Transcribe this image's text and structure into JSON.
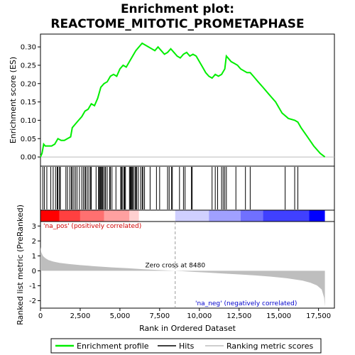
{
  "chart_data": {
    "type": "line",
    "title": [
      "Enrichment plot:",
      "REACTOME_MITOTIC_PROMETAPHASE"
    ],
    "colors": {
      "enrichment": "#00ee00",
      "hits": "#000000",
      "metric": "#bebebe",
      "pos_annot": "#d00000",
      "neg_annot": "#0000cc",
      "zero_line": "#999999"
    },
    "top_panel": {
      "ylabel": "Enrichment score (ES)",
      "ylim": [
        -0.025,
        0.335
      ],
      "yticks": [
        0.0,
        0.05,
        0.1,
        0.15,
        0.2,
        0.25,
        0.3
      ],
      "ytick_labels": [
        "0.00",
        "0.05",
        "0.10",
        "0.15",
        "0.20",
        "0.25",
        "0.30"
      ],
      "series": {
        "name": "Enrichment profile",
        "x": [
          0,
          100,
          200,
          300,
          500,
          700,
          900,
          1100,
          1300,
          1500,
          1700,
          1900,
          2000,
          2200,
          2400,
          2600,
          2800,
          3000,
          3200,
          3400,
          3600,
          3800,
          4000,
          4200,
          4400,
          4600,
          4800,
          5000,
          5200,
          5400,
          5600,
          5800,
          6000,
          6200,
          6400,
          6600,
          6800,
          7000,
          7200,
          7400,
          7600,
          7800,
          8000,
          8200,
          8400,
          8600,
          8800,
          9000,
          9200,
          9400,
          9600,
          9800,
          10000,
          10200,
          10400,
          10600,
          10800,
          11000,
          11200,
          11400,
          11600,
          11700,
          11800,
          12000,
          12200,
          12400,
          12600,
          12800,
          13000,
          13200,
          13400,
          13600,
          13800,
          14000,
          14400,
          14800,
          15200,
          15600,
          16000,
          16200,
          16400,
          16800,
          17200,
          17600,
          17900
        ],
        "y": [
          0.0,
          0.01,
          0.035,
          0.03,
          0.03,
          0.03,
          0.035,
          0.05,
          0.045,
          0.045,
          0.05,
          0.055,
          0.08,
          0.09,
          0.1,
          0.11,
          0.125,
          0.13,
          0.145,
          0.14,
          0.16,
          0.19,
          0.2,
          0.205,
          0.22,
          0.225,
          0.22,
          0.24,
          0.25,
          0.245,
          0.26,
          0.275,
          0.29,
          0.3,
          0.31,
          0.305,
          0.3,
          0.295,
          0.29,
          0.3,
          0.29,
          0.28,
          0.285,
          0.295,
          0.285,
          0.275,
          0.27,
          0.28,
          0.285,
          0.275,
          0.28,
          0.275,
          0.26,
          0.245,
          0.23,
          0.22,
          0.215,
          0.225,
          0.22,
          0.225,
          0.24,
          0.275,
          0.27,
          0.26,
          0.255,
          0.25,
          0.24,
          0.235,
          0.23,
          0.23,
          0.22,
          0.21,
          0.2,
          0.19,
          0.17,
          0.15,
          0.12,
          0.105,
          0.1,
          0.095,
          0.08,
          0.055,
          0.03,
          0.01,
          0.0
        ]
      }
    },
    "hits_panel": {
      "label": "Hits",
      "positions": [
        150,
        250,
        400,
        650,
        800,
        950,
        1050,
        1100,
        1200,
        1250,
        1600,
        1700,
        1850,
        1950,
        2000,
        2100,
        2200,
        2300,
        2450,
        2600,
        2700,
        2800,
        2850,
        2950,
        3050,
        3150,
        3200,
        3500,
        3650,
        3700,
        3750,
        3800,
        3850,
        3900,
        3950,
        4050,
        4100,
        4200,
        4350,
        4400,
        4500,
        4750,
        5050,
        5100,
        5150,
        5250,
        5300,
        5350,
        5600,
        5650,
        5700,
        5750,
        5800,
        5850,
        5950,
        6000,
        6050,
        6150,
        6300,
        6400,
        6450,
        6550,
        6900,
        7300,
        7500,
        8000,
        8100,
        8250,
        8300,
        8750,
        9000,
        9100,
        9500,
        9550,
        10800,
        11000,
        11150,
        11400,
        11500,
        11600,
        11700,
        12300,
        12900,
        13200,
        15400,
        16000,
        16200
      ]
    },
    "ranking_bar": {
      "colors_left_to_right": [
        "#ff0000",
        "#ff4040",
        "#ff7070",
        "#ffa0a0",
        "#ffd0d0",
        "#ffffff",
        "#d0d0ff",
        "#a0a0ff",
        "#7070ff",
        "#4040ff",
        "#0000ff"
      ],
      "edges": [
        0,
        1200,
        2500,
        4000,
        5600,
        6200,
        8480,
        10600,
        12600,
        14000,
        16900,
        17900
      ]
    },
    "bottom_panel": {
      "ylabel": "Ranked list metric (PreRanked)",
      "xlabel": "Rank in Ordered Dataset",
      "ylim": [
        -2.5,
        3.3
      ],
      "yticks": [
        -2,
        -1,
        0,
        1,
        2,
        3
      ],
      "ytick_labels": [
        "-2",
        "-1",
        "0",
        "1",
        "2",
        "3"
      ],
      "xlim": [
        0,
        18500
      ],
      "xticks": [
        0,
        2500,
        5000,
        7500,
        10000,
        12500,
        15000,
        17500
      ],
      "xtick_labels": [
        "0",
        "2,500",
        "5,000",
        "7,500",
        "10,000",
        "12,500",
        "15,000",
        "17,500"
      ],
      "series": {
        "name": "Ranking metric scores",
        "x": [
          0,
          50,
          150,
          300,
          500,
          800,
          1200,
          1800,
          2500,
          3500,
          4500,
          5500,
          6500,
          7500,
          8480,
          9500,
          10500,
          11500,
          12500,
          13500,
          14500,
          15500,
          16500,
          17000,
          17400,
          17700,
          17850,
          17900
        ],
        "y": [
          1.6,
          1.25,
          1.0,
          0.85,
          0.72,
          0.62,
          0.53,
          0.45,
          0.38,
          0.3,
          0.23,
          0.17,
          0.1,
          0.05,
          0.0,
          -0.06,
          -0.12,
          -0.18,
          -0.24,
          -0.31,
          -0.39,
          -0.5,
          -0.66,
          -0.8,
          -0.98,
          -1.25,
          -1.8,
          -2.4
        ]
      },
      "zero_cross_label": "Zero cross at 8480",
      "zero_cross_x": 8480,
      "pos_label": "'na_pos' (positively correlated)",
      "neg_label": "'na_neg' (negatively correlated)"
    },
    "xlim": [
      0,
      18500
    ],
    "legend": {
      "placement": "bottom",
      "items": [
        {
          "label": "Enrichment profile",
          "color": "#00ee00"
        },
        {
          "label": "Hits",
          "color": "#000000"
        },
        {
          "label": "Ranking metric scores",
          "color": "#bebebe"
        }
      ]
    }
  }
}
